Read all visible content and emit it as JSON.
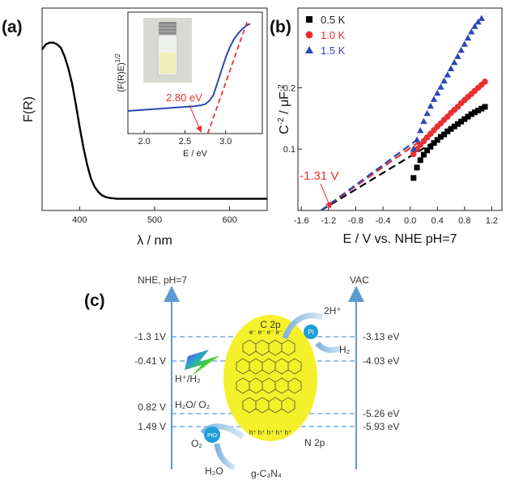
{
  "chart_data": [
    {
      "panel": "(a)",
      "type": "line",
      "xlabel": "λ / nm",
      "ylabel": "F(R)",
      "xlim": [
        350,
        650
      ],
      "ylim": [
        0,
        1
      ],
      "xticks": [
        400,
        500,
        600
      ],
      "series": [
        {
          "color": "#000000",
          "x": [
            350,
            355,
            360,
            365,
            370,
            375,
            380,
            385,
            390,
            395,
            400,
            405,
            410,
            415,
            420,
            425,
            430,
            435,
            440,
            450,
            460,
            480,
            500,
            550,
            600,
            650
          ],
          "y": [
            0.9,
            0.93,
            0.94,
            0.94,
            0.93,
            0.91,
            0.86,
            0.79,
            0.7,
            0.58,
            0.45,
            0.33,
            0.23,
            0.15,
            0.1,
            0.07,
            0.05,
            0.04,
            0.035,
            0.03,
            0.03,
            0.03,
            0.03,
            0.03,
            0.03,
            0.03
          ]
        }
      ],
      "inset": {
        "type": "line",
        "xlabel": "E / eV",
        "ylabel": "(F(R)E)^1/2",
        "xlim": [
          1.8,
          3.45
        ],
        "ylim": [
          0,
          1
        ],
        "xticks": [
          "2.0",
          "2.5",
          "3.0"
        ],
        "annotation": "2.80 eV",
        "annotation_value": 2.8,
        "series": [
          {
            "color": "#2d48b5",
            "x": [
              1.8,
              2.0,
              2.2,
              2.4,
              2.6,
              2.7,
              2.75,
              2.8,
              2.85,
              2.9,
              2.95,
              3.0,
              3.05,
              3.1,
              3.15,
              3.2,
              3.25,
              3.3
            ],
            "y": [
              0.2,
              0.21,
              0.22,
              0.23,
              0.24,
              0.25,
              0.26,
              0.29,
              0.34,
              0.45,
              0.56,
              0.67,
              0.76,
              0.83,
              0.88,
              0.92,
              0.95,
              0.97
            ]
          }
        ],
        "fit_line": {
          "color": "#e83030",
          "x": [
            2.78,
            3.27
          ],
          "y": [
            0.0,
            1.0
          ]
        }
      }
    },
    {
      "panel": "(b)",
      "type": "scatter",
      "xlabel": "E / V vs. NHE pH=7",
      "ylabel": "C-2 / μF-2",
      "xlim": [
        -1.65,
        1.35
      ],
      "ylim": [
        0,
        0.33
      ],
      "xticks": [
        "-1.6",
        "-1.2",
        "-0.8",
        "-0.4",
        "0.0",
        "0.4",
        "0.8",
        "1.2"
      ],
      "yticks": [
        "0.1",
        "0.2"
      ],
      "annotation": "-1.31 V",
      "annotation_value": -1.31,
      "series": [
        {
          "name": "0.5 K",
          "color": "#000000",
          "marker": "square",
          "x": [
            0.05,
            0.1,
            0.15,
            0.2,
            0.25,
            0.3,
            0.35,
            0.4,
            0.45,
            0.5,
            0.55,
            0.6,
            0.65,
            0.7,
            0.75,
            0.8,
            0.85,
            0.9,
            0.95,
            1.0,
            1.05,
            1.1
          ],
          "y": [
            0.053,
            0.07,
            0.082,
            0.091,
            0.098,
            0.104,
            0.11,
            0.115,
            0.12,
            0.124,
            0.129,
            0.133,
            0.137,
            0.141,
            0.145,
            0.149,
            0.153,
            0.157,
            0.16,
            0.163,
            0.166,
            0.169
          ],
          "fit": {
            "x": [
              -1.31,
              0.4
            ],
            "y": [
              0.0,
              0.115
            ]
          }
        },
        {
          "name": "1.0 K",
          "color": "#e83030",
          "marker": "circle",
          "x": [
            0.05,
            0.1,
            0.15,
            0.2,
            0.25,
            0.3,
            0.35,
            0.4,
            0.45,
            0.5,
            0.55,
            0.6,
            0.65,
            0.7,
            0.75,
            0.8,
            0.85,
            0.9,
            0.95,
            1.0,
            1.05,
            1.1
          ],
          "y": [
            0.092,
            0.1,
            0.107,
            0.113,
            0.119,
            0.125,
            0.131,
            0.137,
            0.142,
            0.148,
            0.153,
            0.159,
            0.164,
            0.169,
            0.175,
            0.18,
            0.185,
            0.19,
            0.195,
            0.2,
            0.205,
            0.21
          ],
          "fit": {
            "x": [
              -1.31,
              0.3
            ],
            "y": [
              0.0,
              0.125
            ]
          }
        },
        {
          "name": "1.5 K",
          "color": "#2d48b5",
          "marker": "triangle",
          "x": [
            0.05,
            0.1,
            0.15,
            0.2,
            0.25,
            0.3,
            0.35,
            0.4,
            0.45,
            0.5,
            0.55,
            0.6,
            0.65,
            0.7,
            0.75,
            0.8,
            0.85,
            0.9,
            0.95,
            1.0,
            1.05
          ],
          "y": [
            0.1,
            0.115,
            0.13,
            0.145,
            0.158,
            0.17,
            0.181,
            0.191,
            0.201,
            0.211,
            0.221,
            0.231,
            0.241,
            0.251,
            0.261,
            0.271,
            0.281,
            0.291,
            0.3,
            0.307,
            0.313
          ],
          "fit": {
            "x": [
              -1.31,
              0.1
            ],
            "y": [
              0.0,
              0.115
            ]
          }
        }
      ]
    },
    {
      "panel": "(c)",
      "type": "diagram",
      "left_axis_label": "NHE, pH=7",
      "right_axis_label": "VAC",
      "levels": [
        {
          "left": "-1.3 1V",
          "right": "-3.13 eV"
        },
        {
          "left": "-0.41 V",
          "right": "-4.03 eV"
        },
        {
          "left": "0.82 V",
          "right": "-5.26 eV"
        },
        {
          "left": "1.49 V",
          "right": "-5.93 eV"
        }
      ],
      "labels": {
        "cb": "C 2p",
        "vb": "N 2p",
        "h2_pair": "H⁺/H₂",
        "o2_pair": "H₂O/ O₂",
        "reactant_top": "2H⁺",
        "product_top": "H₂",
        "product_bottom": "O₂",
        "reactant_bottom": "H₂O",
        "pt": "Pt",
        "pto": "PtO",
        "electrons": "e⁻ e⁻ e⁻ e⁻ e⁻",
        "holes": "h⁺ h⁺ h⁺ h⁺ h⁺",
        "material": "g-C₃N₄"
      },
      "colors": {
        "particle": "#f4f02a",
        "axis": "#5b9bd5",
        "level": "#5b9bd5",
        "catalyst": "#1f9ed8"
      }
    }
  ]
}
